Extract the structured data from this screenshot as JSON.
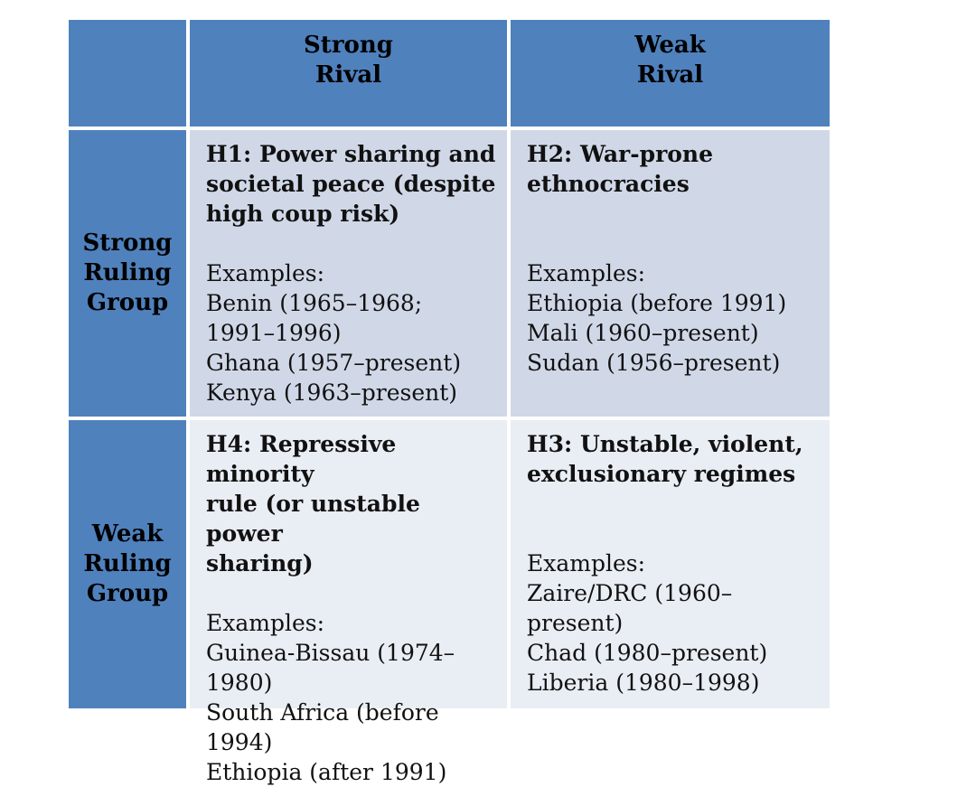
{
  "header": {
    "col1": [
      "Strong",
      "Rival"
    ],
    "col2": [
      "Weak",
      "Rival"
    ]
  },
  "rows": {
    "row1": [
      "Strong",
      "Ruling",
      "Group"
    ],
    "row2": [
      "Weak",
      "Ruling",
      "Group"
    ]
  },
  "cells": {
    "h1": {
      "title": [
        "H1: Power sharing and",
        "societal peace (despite",
        "high coup risk)"
      ],
      "examples_label": "Examples:",
      "examples": [
        "Benin (1965–1968;",
        "1991–1996)",
        "Ghana (1957–present)",
        "Kenya (1963–present)"
      ]
    },
    "h2": {
      "title": [
        "H2: War-prone",
        "ethnocracies"
      ],
      "examples_label": "Examples:",
      "examples": [
        "Ethiopia (before 1991)",
        "Mali (1960–present)",
        "Sudan (1956–present)"
      ]
    },
    "h4": {
      "title": [
        "H4: Repressive minority",
        "rule (or unstable power",
        "sharing)"
      ],
      "examples_label": "Examples:",
      "examples": [
        "Guinea-Bissau (1974–",
        "1980)",
        "South Africa (before 1994)",
        "Ethiopia (after 1991)"
      ]
    },
    "h3": {
      "title": [
        "H3: Unstable, violent,",
        "exclusionary regimes"
      ],
      "examples_label": "Examples:",
      "examples": [
        "Zaire/DRC (1960–",
        "present)",
        "Chad (1980–present)",
        "Liberia (1980–1998)"
      ]
    }
  },
  "colors": {
    "header_blue": "#4f81bd",
    "row1_fill": "#d0d8e8",
    "row2_fill": "#e9edf4"
  }
}
